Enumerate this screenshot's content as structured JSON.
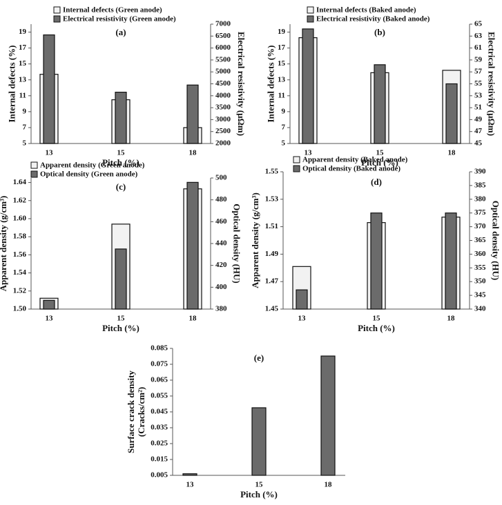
{
  "chart_data": [
    {
      "type": "bar",
      "title": "(a)",
      "categories": [
        "13",
        "15",
        "18"
      ],
      "xlabel": "Pitch (%)",
      "ylabel": "Internal defects (%)",
      "y2label": "Electrical resistivity (μΩm)",
      "ylim": [
        5,
        20
      ],
      "yticks": [
        5,
        7,
        9,
        11,
        13,
        15,
        17,
        19
      ],
      "y2lim": [
        2000,
        7000
      ],
      "y2ticks": [
        2000,
        2500,
        3000,
        3500,
        4000,
        4500,
        5000,
        5500,
        6000,
        6500,
        7000
      ],
      "series": [
        {
          "name": "Internal defects (Green anode)",
          "color": "#f2f2f2",
          "values": [
            13.7,
            10.5,
            7.0
          ]
        },
        {
          "name": "Electrical resistivity (Green anode)",
          "color": "#6b6b6b",
          "axis": "y2",
          "values": [
            6550,
            4150,
            4450
          ]
        }
      ]
    },
    {
      "type": "bar",
      "title": "(b)",
      "categories": [
        "13",
        "15",
        "18"
      ],
      "xlabel": "Pitch (%)",
      "ylabel": "Internal defects (%)",
      "y2label": "Electrical resistivity (μΩm)",
      "ylim": [
        5,
        20
      ],
      "yticks": [
        5,
        7,
        9,
        11,
        13,
        15,
        17,
        19
      ],
      "y2lim": [
        45,
        65
      ],
      "y2ticks": [
        45,
        47,
        49,
        51,
        53,
        55,
        57,
        59,
        61,
        63,
        65
      ],
      "series": [
        {
          "name": "Internal defects (Baked anode)",
          "color": "#f2f2f2",
          "values": [
            18.3,
            13.9,
            14.2
          ]
        },
        {
          "name": "Electrical resistivity (Baked anode)",
          "color": "#6b6b6b",
          "axis": "y2",
          "values": [
            64.2,
            58.2,
            55.0
          ]
        }
      ]
    },
    {
      "type": "bar",
      "title": "(c)",
      "categories": [
        "13",
        "15",
        "18"
      ],
      "xlabel": "Pitch (%)",
      "ylabel": "Apparent density (g/cm³)",
      "y2label": "Optical density (HU)",
      "ylim": [
        1.5,
        1.645
      ],
      "yticks": [
        {
          "value": 1.5,
          "label": "1.50"
        },
        1.52,
        1.54,
        1.56,
        1.58,
        {
          "value": 1.6,
          "label": "1.60"
        },
        1.62,
        1.64
      ],
      "y2lim": [
        380,
        500
      ],
      "y2ticks": [
        380,
        400,
        420,
        440,
        460,
        480,
        500
      ],
      "series": [
        {
          "name": "Apparent density (Green anode)",
          "color": "#f2f2f2",
          "values": [
            1.512,
            1.594,
            1.633
          ]
        },
        {
          "name": "Optical density (Green anode)",
          "color": "#6b6b6b",
          "axis": "y2",
          "values": [
            388,
            435,
            496
          ]
        }
      ]
    },
    {
      "type": "bar",
      "title": "(d)",
      "categories": [
        "13",
        "15",
        "18"
      ],
      "xlabel": "Pitch (%)",
      "ylabel": "Apparent density (g/cm³)",
      "y2label": "Optical density (HU)",
      "ylim": [
        1.45,
        1.55
      ],
      "yticks": [
        1.45,
        1.47,
        1.49,
        1.51,
        1.53,
        1.55
      ],
      "y2lim": [
        340,
        390
      ],
      "y2ticks": [
        340,
        345,
        350,
        355,
        360,
        365,
        370,
        375,
        380,
        385,
        390
      ],
      "series": [
        {
          "name": "Apparent density (Baked anode)",
          "color": "#f2f2f2",
          "values": [
            1.481,
            1.513,
            1.517
          ]
        },
        {
          "name": "Optical density (Baked anode)",
          "color": "#6b6b6b",
          "axis": "y2",
          "values": [
            347,
            375,
            375
          ]
        }
      ]
    },
    {
      "type": "bar",
      "title": "(e)",
      "categories": [
        "13",
        "15",
        "18"
      ],
      "xlabel": "Pitch (%)",
      "ylabel": [
        "Surface crack density",
        "(Cracks/cm²)"
      ],
      "ylim": [
        0.005,
        0.085
      ],
      "yticks": [
        0.005,
        0.015,
        0.025,
        0.035,
        0.045,
        0.055,
        0.065,
        0.075,
        0.085
      ],
      "series": [
        {
          "color": "#6b6b6b",
          "values": [
            0.006,
            0.0476,
            0.0802
          ]
        }
      ]
    }
  ]
}
